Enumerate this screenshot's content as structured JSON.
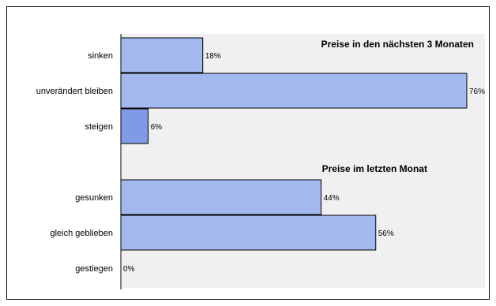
{
  "chart_data": {
    "type": "bar",
    "orientation": "horizontal",
    "value_unit": "%",
    "xlim": [
      0,
      100
    ],
    "grid": false,
    "groups": [
      {
        "title": "Preise in den nächsten 3 Monaten",
        "categories": [
          "sinken",
          "unverändert bleiben",
          "steigen"
        ],
        "values": [
          18,
          76,
          6
        ],
        "value_labels": [
          "18%",
          "76%",
          "6%"
        ],
        "colors": [
          "#a4b8f0",
          "#a4b8f0",
          "#7f9ae6"
        ]
      },
      {
        "title": "Preise im letzten Monat",
        "categories": [
          "gesunken",
          "gleich geblieben",
          "gestiegen"
        ],
        "values": [
          44,
          56,
          0
        ],
        "value_labels": [
          "44%",
          "56%",
          "0%"
        ],
        "colors": [
          "#a4b8f0",
          "#a4b8f0",
          "#a4b8f0"
        ]
      }
    ],
    "colors": {
      "plot_background": "#f0f0f0",
      "bar_stroke": "#000000"
    }
  }
}
